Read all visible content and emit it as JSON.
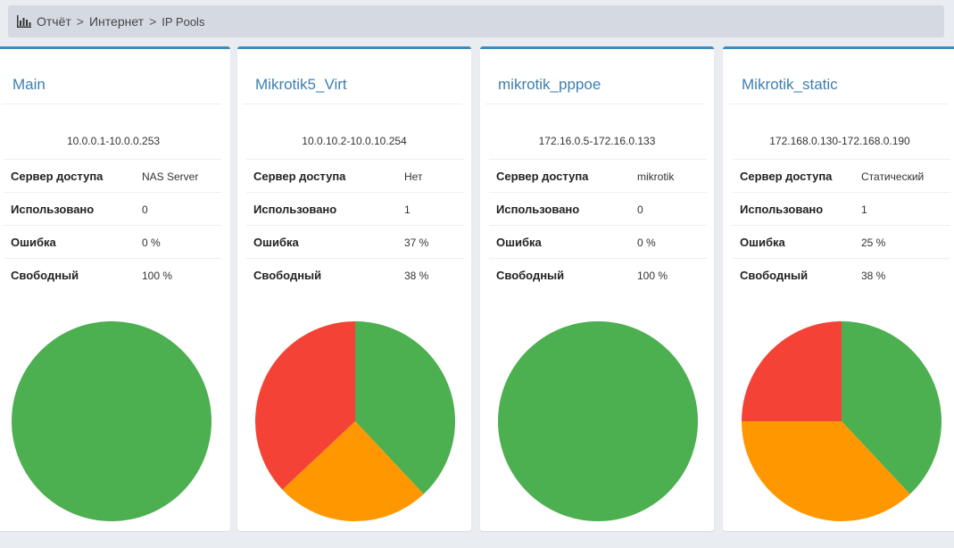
{
  "breadcrumb": {
    "icon": "bar-chart-icon",
    "items": [
      "Отчёт",
      "Интернет",
      "IP Pools"
    ],
    "separator": ">"
  },
  "labels": {
    "server": "Сервер доступа",
    "used": "Использовано",
    "error": "Ошибка",
    "free": "Свободный"
  },
  "colors": {
    "accent": "#3c8dbc",
    "free": "#4caf50",
    "used": "#ff9800",
    "error": "#f44336"
  },
  "pools": [
    {
      "name": "Main",
      "range": "10.0.0.1-10.0.0.253",
      "server": "NAS Server",
      "used": "0",
      "error": "0 %",
      "free": "100 %",
      "pie": [
        {
          "label": "free",
          "value": 100
        },
        {
          "label": "used",
          "value": 0
        },
        {
          "label": "error",
          "value": 0
        }
      ]
    },
    {
      "name": "Mikrotik5_Virt",
      "range": "10.0.10.2-10.0.10.254",
      "server": "Нет",
      "used": "1",
      "error": "37 %",
      "free": "38 %",
      "pie": [
        {
          "label": "free",
          "value": 38
        },
        {
          "label": "used",
          "value": 25
        },
        {
          "label": "error",
          "value": 37
        }
      ]
    },
    {
      "name": "mikrotik_pppoe",
      "range": "172.16.0.5-172.16.0.133",
      "server": "mikrotik",
      "used": "0",
      "error": "0 %",
      "free": "100 %",
      "pie": [
        {
          "label": "free",
          "value": 100
        },
        {
          "label": "used",
          "value": 0
        },
        {
          "label": "error",
          "value": 0
        }
      ]
    },
    {
      "name": "Mikrotik_static",
      "range": "172.168.0.130-172.168.0.190",
      "server": "Статический",
      "used": "1",
      "error": "25 %",
      "free": "38 %",
      "pie": [
        {
          "label": "free",
          "value": 38
        },
        {
          "label": "used",
          "value": 37
        },
        {
          "label": "error",
          "value": 25
        }
      ]
    }
  ]
}
